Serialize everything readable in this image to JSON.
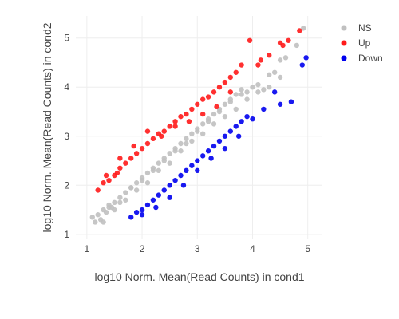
{
  "chart_data": {
    "type": "scatter",
    "xlabel": "log10 Norm. Mean(Read Counts) in cond1",
    "ylabel": "log10 Norm. Mean(Read Counts) in cond2",
    "xlim": [
      0.8,
      5.25
    ],
    "ylim": [
      0.9,
      5.45
    ],
    "xticks": [
      "1",
      "2",
      "3",
      "4",
      "5"
    ],
    "yticks": [
      "1",
      "2",
      "3",
      "4",
      "5"
    ],
    "grid": true,
    "legend_position": "top-right",
    "series": [
      {
        "name": "NS",
        "color": "#c0c0c0",
        "x": [
          1.1,
          1.15,
          1.2,
          1.25,
          1.3,
          1.35,
          1.4,
          1.45,
          1.5,
          1.6,
          1.7,
          1.8,
          1.9,
          2.0,
          2.1,
          2.2,
          2.3,
          2.4,
          2.5,
          2.6,
          2.7,
          2.8,
          2.9,
          3.0,
          3.1,
          3.2,
          3.3,
          3.4,
          3.5,
          3.6,
          3.7,
          3.8,
          3.9,
          4.0,
          4.1,
          4.2,
          4.3,
          4.4,
          4.5,
          4.6,
          4.8,
          4.92,
          1.3,
          1.5,
          1.7,
          1.9,
          2.1,
          2.3,
          2.5,
          2.7,
          2.9,
          3.1,
          3.3,
          3.5,
          3.7,
          3.9,
          4.1,
          1.4,
          1.6,
          1.8,
          2.0,
          2.2,
          2.4,
          2.6,
          2.8,
          3.0,
          3.2,
          3.4,
          3.6,
          3.8,
          4.3,
          4.5
        ],
        "y": [
          1.35,
          1.25,
          1.4,
          1.3,
          1.5,
          1.45,
          1.6,
          1.55,
          1.65,
          1.75,
          1.85,
          1.95,
          2.05,
          2.15,
          2.25,
          2.35,
          2.45,
          2.55,
          2.65,
          2.75,
          2.85,
          2.95,
          3.05,
          3.15,
          3.25,
          3.35,
          3.45,
          3.55,
          3.65,
          3.75,
          3.85,
          3.95,
          3.9,
          4.0,
          4.05,
          3.95,
          4.25,
          4.3,
          4.55,
          4.6,
          4.85,
          5.2,
          1.25,
          1.5,
          1.7,
          1.9,
          2.05,
          2.3,
          2.45,
          2.7,
          2.9,
          3.05,
          3.25,
          3.4,
          3.55,
          3.75,
          3.9,
          1.55,
          1.65,
          1.95,
          2.1,
          2.3,
          2.5,
          2.7,
          2.85,
          3.1,
          3.3,
          3.5,
          3.7,
          3.85,
          4.0,
          4.2
        ]
      },
      {
        "name": "Up",
        "color": "#ff1a1a",
        "x": [
          1.2,
          1.3,
          1.4,
          1.5,
          1.55,
          1.6,
          1.7,
          1.8,
          1.9,
          2.0,
          2.1,
          2.2,
          2.3,
          2.4,
          2.5,
          2.6,
          2.7,
          2.8,
          2.9,
          3.0,
          3.1,
          3.2,
          3.3,
          3.4,
          3.5,
          3.6,
          3.7,
          3.8,
          3.95,
          4.1,
          4.15,
          4.3,
          4.5,
          4.55,
          4.65,
          4.85,
          1.35,
          1.6,
          1.85,
          2.1,
          2.35,
          2.6,
          2.85,
          3.1,
          3.35,
          3.6
        ],
        "y": [
          1.9,
          2.05,
          2.1,
          2.2,
          2.25,
          2.35,
          2.45,
          2.55,
          2.65,
          2.75,
          2.85,
          2.95,
          3.05,
          3.1,
          3.2,
          3.3,
          3.4,
          3.45,
          3.55,
          3.65,
          3.75,
          3.8,
          3.9,
          4.0,
          4.1,
          4.2,
          4.3,
          4.45,
          4.95,
          4.45,
          4.55,
          4.65,
          4.9,
          4.85,
          4.95,
          5.15,
          2.2,
          2.55,
          2.8,
          3.1,
          3.0,
          3.2,
          3.3,
          3.45,
          3.6,
          3.9
        ]
      },
      {
        "name": "Down",
        "color": "#0000ee",
        "x": [
          1.8,
          1.9,
          2.0,
          2.1,
          2.2,
          2.3,
          2.4,
          2.5,
          2.6,
          2.7,
          2.8,
          2.9,
          3.0,
          3.1,
          3.2,
          3.3,
          3.4,
          3.5,
          3.6,
          3.7,
          3.8,
          3.9,
          4.0,
          4.2,
          4.4,
          4.5,
          4.7,
          4.9,
          4.97,
          2.0,
          2.25,
          2.5,
          2.75,
          3.0,
          3.25,
          3.5,
          3.75
        ],
        "y": [
          1.35,
          1.45,
          1.5,
          1.6,
          1.7,
          1.8,
          1.9,
          2.0,
          2.1,
          2.2,
          2.3,
          2.4,
          2.5,
          2.6,
          2.7,
          2.8,
          2.9,
          3.0,
          3.1,
          3.2,
          3.3,
          3.4,
          3.35,
          3.55,
          3.9,
          3.65,
          3.7,
          4.45,
          4.6,
          1.4,
          1.55,
          1.75,
          2.0,
          2.3,
          2.55,
          2.75,
          3.0
        ]
      }
    ]
  }
}
